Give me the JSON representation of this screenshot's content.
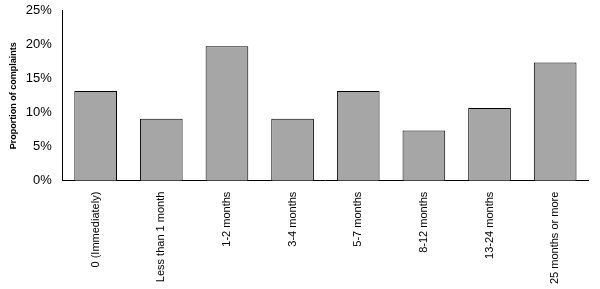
{
  "chart_data": {
    "type": "bar",
    "y_label": "Proportion of complaints",
    "categories": [
      "0 (Immediately)",
      "Less than 1 month",
      "1-2 months",
      "3-4 months",
      "5-7 months",
      "8-12 months",
      "13-24 months",
      "25 months or more"
    ],
    "values": [
      13.2,
      9.1,
      19.8,
      9.1,
      13.2,
      7.4,
      10.7,
      17.4
    ],
    "color": "#a6a6a6",
    "ylim": [
      0,
      25
    ],
    "yticks": [
      {
        "value": 0,
        "label": "0%"
      },
      {
        "value": 5,
        "label": "5%"
      },
      {
        "value": 10,
        "label": "10%"
      },
      {
        "value": 15,
        "label": "15%"
      },
      {
        "value": 20,
        "label": "20%"
      },
      {
        "value": 25,
        "label": "25%"
      }
    ],
    "grid": false
  }
}
